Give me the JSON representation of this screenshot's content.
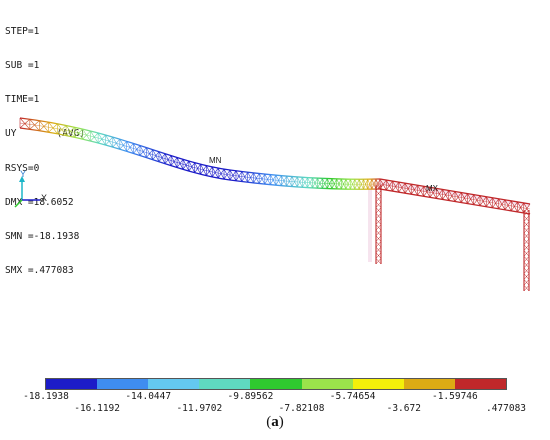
{
  "info": {
    "lines": [
      "STEP=1",
      "SUB =1",
      "TIME=1",
      "UY       (AVG)",
      "RSYS=0",
      "DMX =18.6052",
      "SMN =-18.1938",
      "SMX =.477083"
    ]
  },
  "markers": {
    "min_label": "MN",
    "max_label": "MX"
  },
  "triad": {
    "y_label": "Y",
    "x_label": "X"
  },
  "legend": {
    "colors": [
      "#1c1cc8",
      "#3f8df0",
      "#64c8f0",
      "#5fd9c0",
      "#2fc92f",
      "#9be34b",
      "#f4f00a",
      "#dcab14",
      "#c0282a"
    ],
    "top_labels": [
      "-18.1938",
      "-14.0447",
      "-9.89562",
      "-5.74654",
      "-1.59746"
    ],
    "bottom_labels": [
      "-16.1192",
      "-11.9702",
      "-7.82108",
      "-3.672",
      ".477083"
    ]
  },
  "caption": {
    "open": "(",
    "letter": "a",
    "close": ")"
  }
}
